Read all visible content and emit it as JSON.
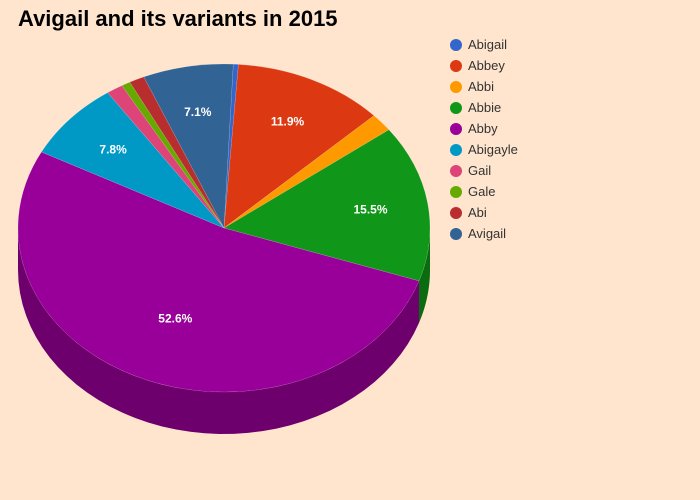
{
  "chart_data": {
    "type": "pie",
    "title": "Avigail and its variants in 2015",
    "slices": [
      {
        "name": "Abigail",
        "value": 0.4,
        "label": "",
        "color": "#3366cc",
        "side": "#2a53a8"
      },
      {
        "name": "Abbey",
        "value": 11.9,
        "label": "11.9%",
        "color": "#dc3912",
        "side": "#a52b0e"
      },
      {
        "name": "Abbi",
        "value": 1.8,
        "label": "",
        "color": "#ff9900",
        "side": "#c47600"
      },
      {
        "name": "Abbie",
        "value": 15.5,
        "label": "15.5%",
        "color": "#109618",
        "side": "#0b6b11"
      },
      {
        "name": "Abby",
        "value": 52.6,
        "label": "52.6%",
        "color": "#990099",
        "side": "#6d006d"
      },
      {
        "name": "Abigayle",
        "value": 7.8,
        "label": "7.8%",
        "color": "#0099c6",
        "side": "#00708f"
      },
      {
        "name": "Gail",
        "value": 1.3,
        "label": "",
        "color": "#dd4477",
        "side": "#a83359"
      },
      {
        "name": "Gale",
        "value": 0.7,
        "label": "",
        "color": "#66aa00",
        "side": "#4a7b00"
      },
      {
        "name": "Abi",
        "value": 1.2,
        "label": "",
        "color": "#b82e2e",
        "side": "#882222"
      },
      {
        "name": "Avigail",
        "value": 7.1,
        "label": "7.1%",
        "color": "#316395",
        "side": "#23476b"
      }
    ],
    "legend_position": "right"
  }
}
